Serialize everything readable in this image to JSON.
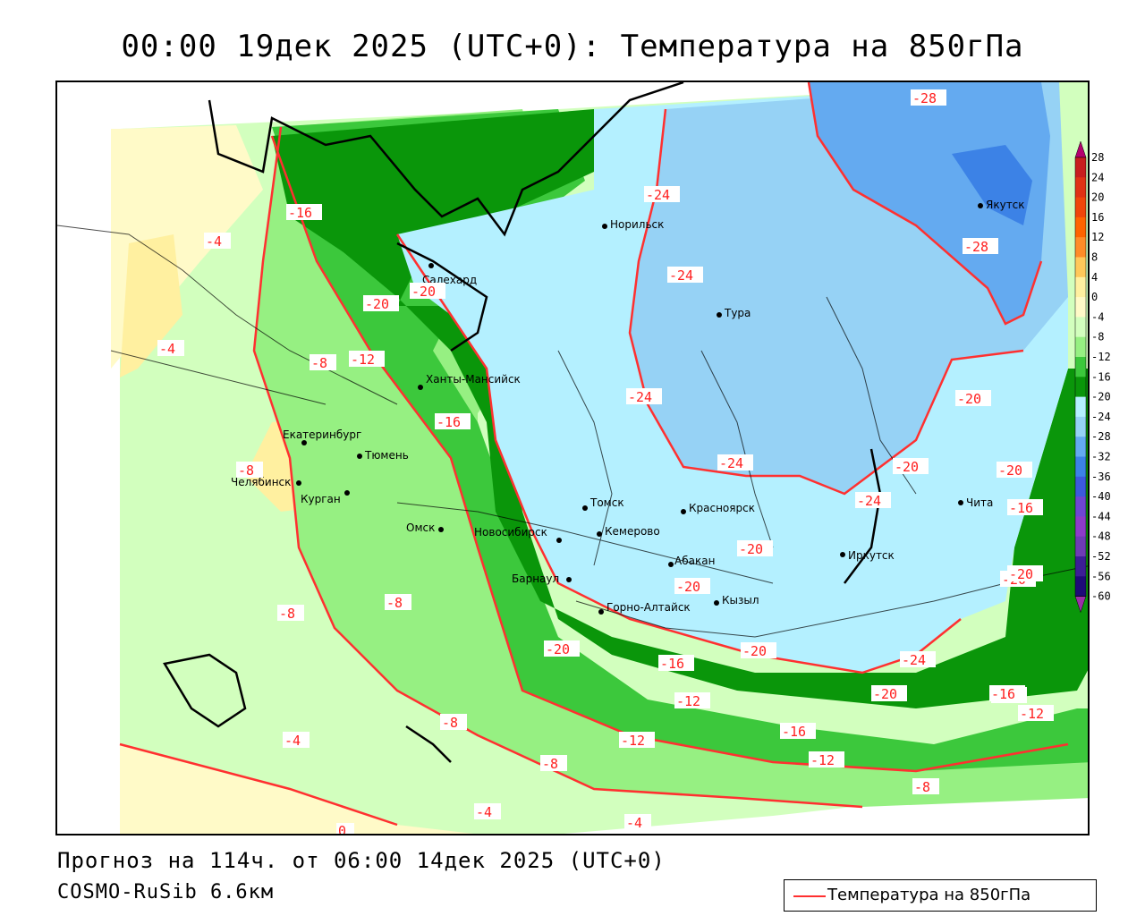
{
  "title": "00:00 19дек 2025 (UTC+0): Температура на 850гПа",
  "footer": {
    "forecast": "Прогноз на 114ч. от 06:00 14дек 2025 (UTC+0)",
    "model": "COSMO-RuSib 6.6км"
  },
  "legend": {
    "label": "Температура на 850гПа",
    "line_color": "#ff3030"
  },
  "colorbar": {
    "levels": [
      "28",
      "24",
      "20",
      "16",
      "12",
      "8",
      "4",
      "0",
      "-4",
      "-8",
      "-12",
      "-16",
      "-20",
      "-24",
      "-28",
      "-32",
      "-36",
      "-40",
      "-44",
      "-48",
      "-52",
      "-56",
      "-60"
    ],
    "colors": [
      "#b4006e",
      "#c81e1e",
      "#e03214",
      "#f0460a",
      "#ff6400",
      "#ff8c28",
      "#ffc85a",
      "#fff0a0",
      "#fffac8",
      "#d2ffbe",
      "#96f082",
      "#3cc83c",
      "#0a960a",
      "#b4f0ff",
      "#96d2f5",
      "#64aaf0",
      "#3c82e6",
      "#3c5adc",
      "#6e46d2",
      "#8c3cc8",
      "#6e3cb4",
      "#3c1e96",
      "#1e0a78",
      "#9b2fa8"
    ]
  },
  "cities": [
    {
      "name": "Норильск"
    },
    {
      "name": "Салехард"
    },
    {
      "name": "Тура"
    },
    {
      "name": "Якутск"
    },
    {
      "name": "Ханты-Мансийск"
    },
    {
      "name": "Екатеринбург"
    },
    {
      "name": "Тюмень"
    },
    {
      "name": "Челябинск"
    },
    {
      "name": "Курган"
    },
    {
      "name": "Омск"
    },
    {
      "name": "Новосибирск"
    },
    {
      "name": "Томск"
    },
    {
      "name": "Красноярск"
    },
    {
      "name": "Кемерово"
    },
    {
      "name": "Барнаул"
    },
    {
      "name": "Абакан"
    },
    {
      "name": "Горно-Алтайск"
    },
    {
      "name": "Кызыл"
    },
    {
      "name": "Иркутск"
    },
    {
      "name": "Чита"
    }
  ],
  "isoline_labels": [
    "-28",
    "-24",
    "-16",
    "-4",
    "-20",
    "-24",
    "-28",
    "-20",
    "-8",
    "-12",
    "-4",
    "-16",
    "-24",
    "-20",
    "-24",
    "-8",
    "-20",
    "-16",
    "-20",
    "-24",
    "-20",
    "-20",
    "-20",
    "-20",
    "-20",
    "-16",
    "-8",
    "-20",
    "-8",
    "-24",
    "-16",
    "-12",
    "-20",
    "-12",
    "-16",
    "-8",
    "-12",
    "-16",
    "-12",
    "-4",
    "-8",
    "-8",
    "-4",
    "-4",
    "0"
  ]
}
